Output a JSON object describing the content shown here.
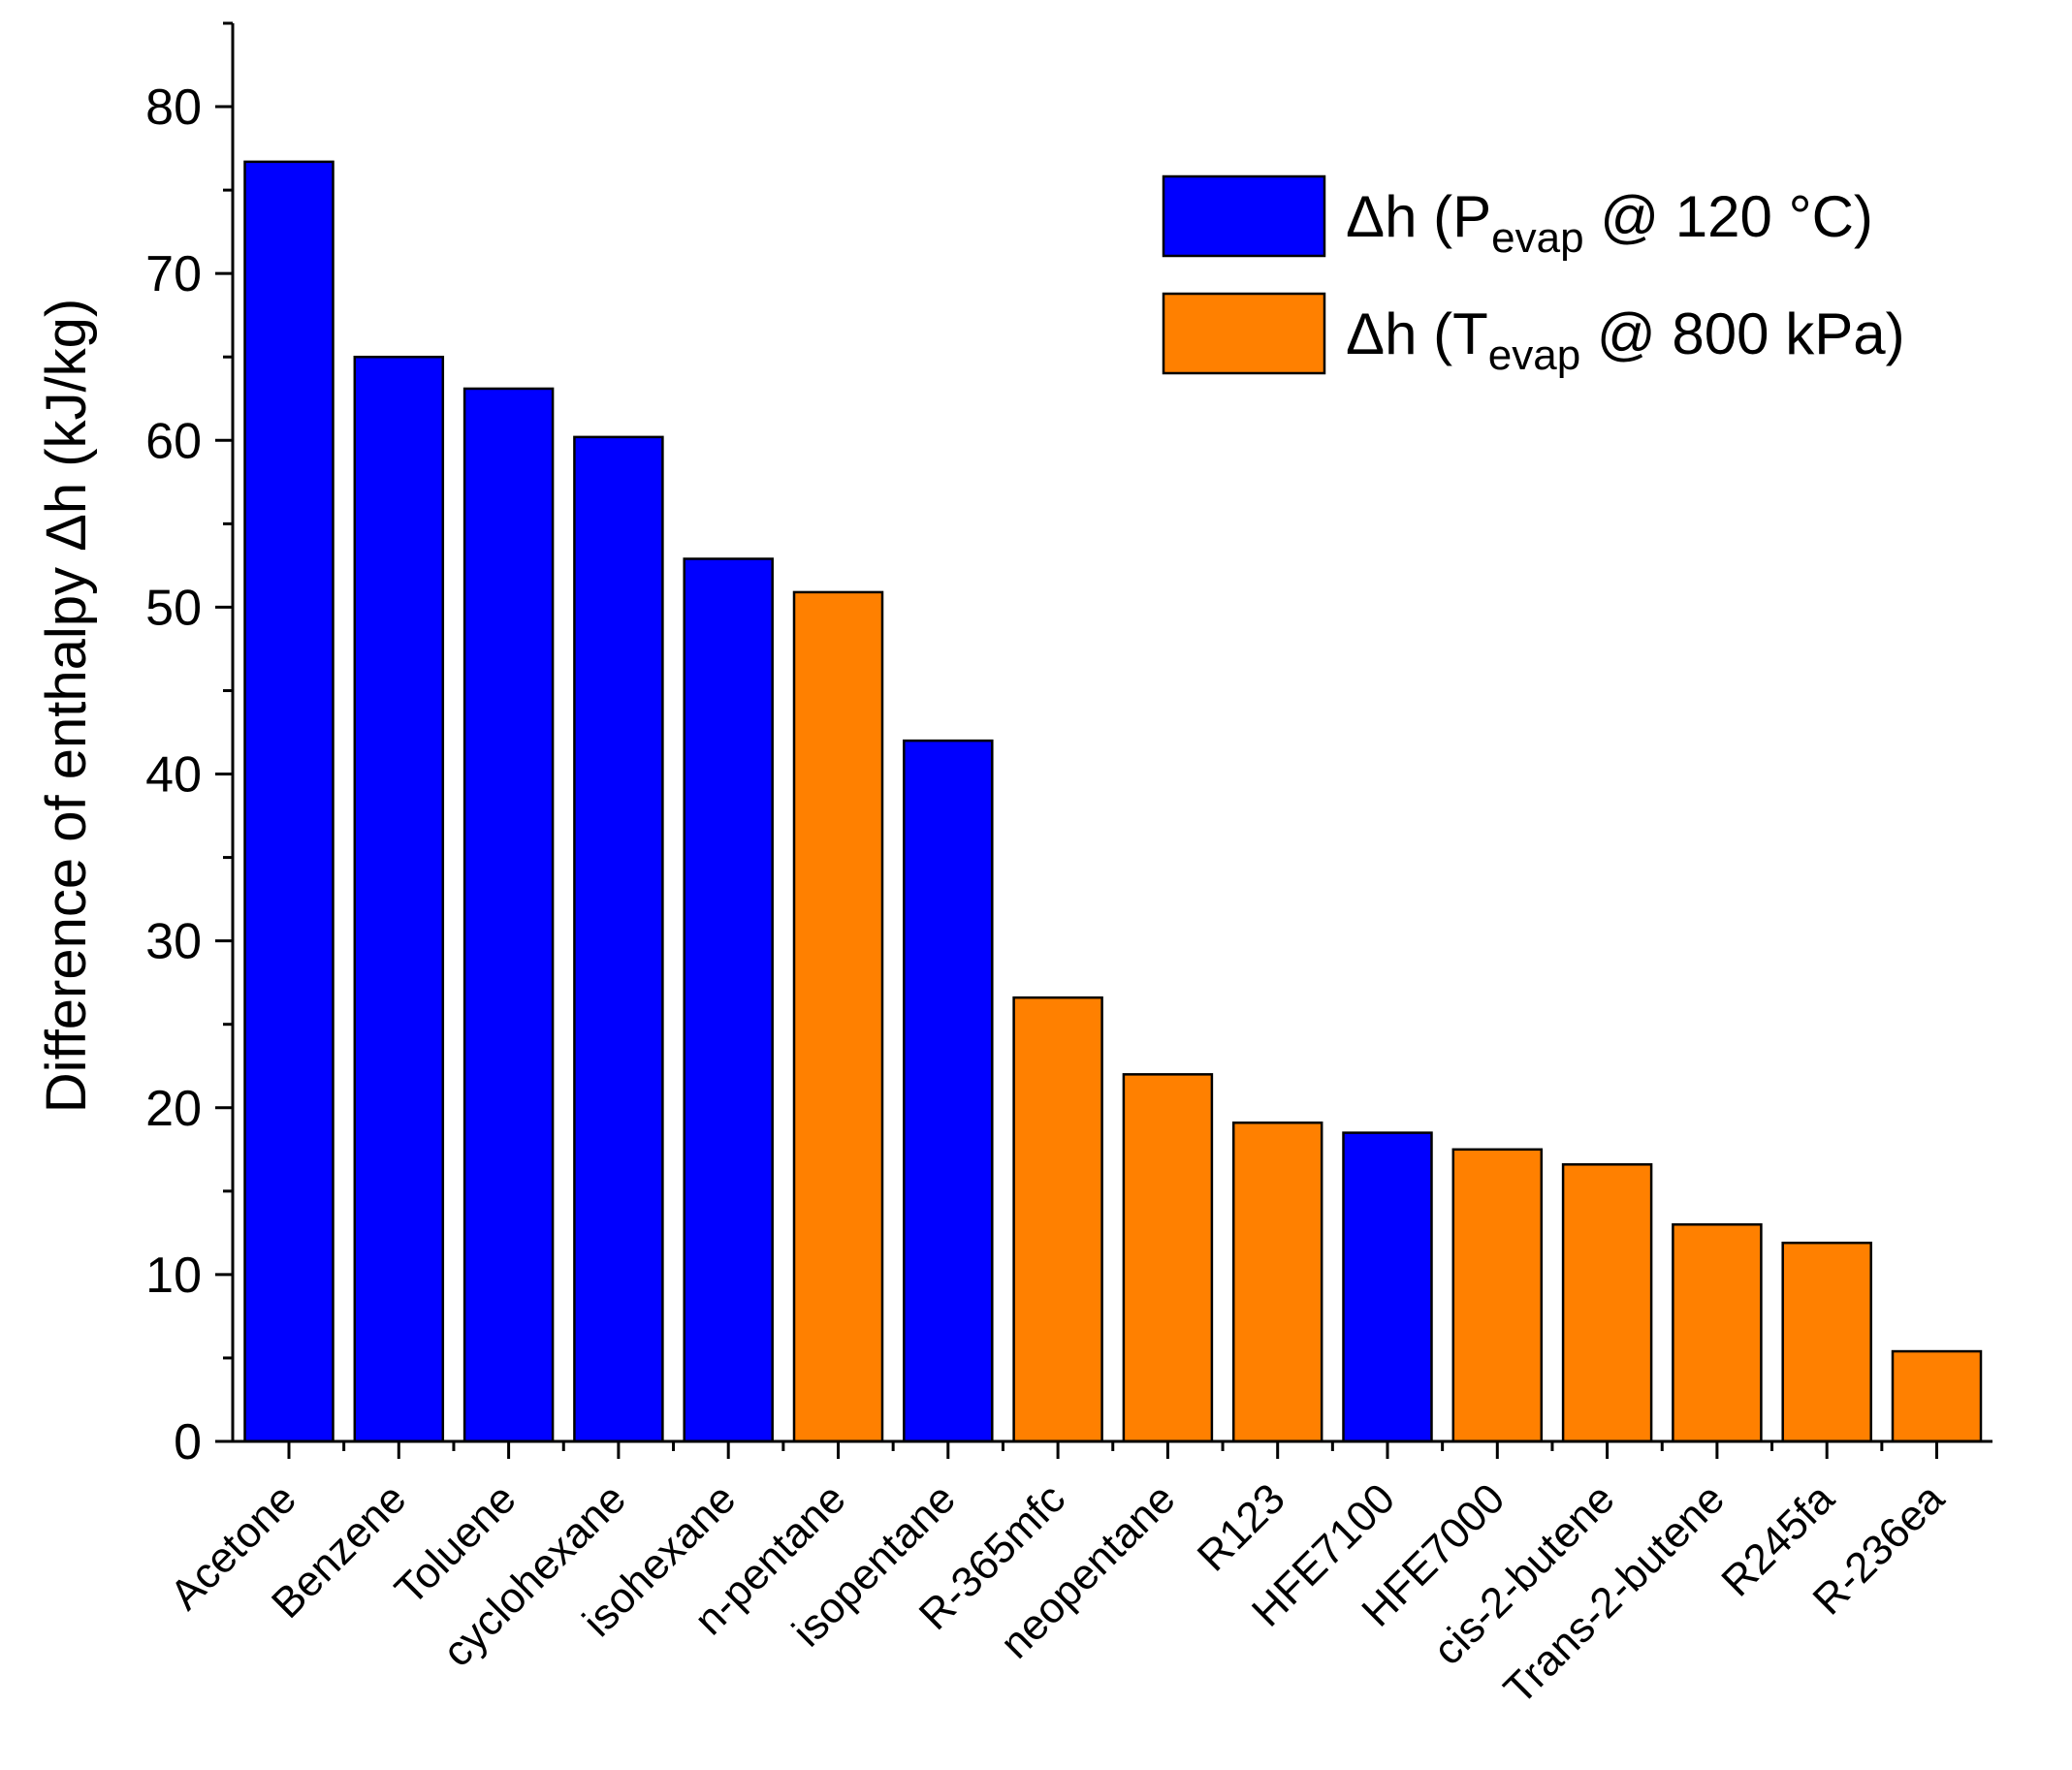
{
  "chart_data": {
    "type": "bar",
    "title": "",
    "xlabel": "",
    "ylabel": "Difference of enthalpy Δh (kJ/kg)",
    "ylim": [
      0,
      85
    ],
    "yticks": [
      0,
      10,
      20,
      30,
      40,
      50,
      60,
      70,
      80
    ],
    "grid": false,
    "legend_position": "top-right",
    "colors": {
      "pevap": "#0000ff",
      "tevap": "#ff8000",
      "axis": "#000000"
    },
    "legend": [
      {
        "key": "pevap",
        "prefix": "Δh (P",
        "sub": "evap",
        "suffix": " @ 120 °C)"
      },
      {
        "key": "tevap",
        "prefix": "Δh (T",
        "sub": "evap",
        "suffix": " @ 800 kPa)"
      }
    ],
    "bars": [
      {
        "category": "Acetone",
        "value": 76.7,
        "series": "pevap"
      },
      {
        "category": "Benzene",
        "value": 65.0,
        "series": "pevap"
      },
      {
        "category": "Toluene",
        "value": 63.1,
        "series": "pevap"
      },
      {
        "category": "cyclohexane",
        "value": 60.2,
        "series": "pevap"
      },
      {
        "category": "isohexane",
        "value": 52.9,
        "series": "pevap"
      },
      {
        "category": "n-pentane",
        "value": 50.9,
        "series": "tevap"
      },
      {
        "category": "isopentane",
        "value": 42.0,
        "series": "pevap"
      },
      {
        "category": "R-365mfc",
        "value": 26.6,
        "series": "tevap"
      },
      {
        "category": "neopentane",
        "value": 22.0,
        "series": "tevap"
      },
      {
        "category": "R123",
        "value": 19.1,
        "series": "tevap"
      },
      {
        "category": "HFE7100",
        "value": 18.5,
        "series": "pevap"
      },
      {
        "category": "HFE7000",
        "value": 17.5,
        "series": "tevap"
      },
      {
        "category": "cis-2-butene",
        "value": 16.6,
        "series": "tevap"
      },
      {
        "category": "Trans-2-butene",
        "value": 13.0,
        "series": "tevap"
      },
      {
        "category": "R245fa",
        "value": 11.9,
        "series": "tevap"
      },
      {
        "category": "R-236ea",
        "value": 5.4,
        "series": "tevap"
      }
    ]
  }
}
